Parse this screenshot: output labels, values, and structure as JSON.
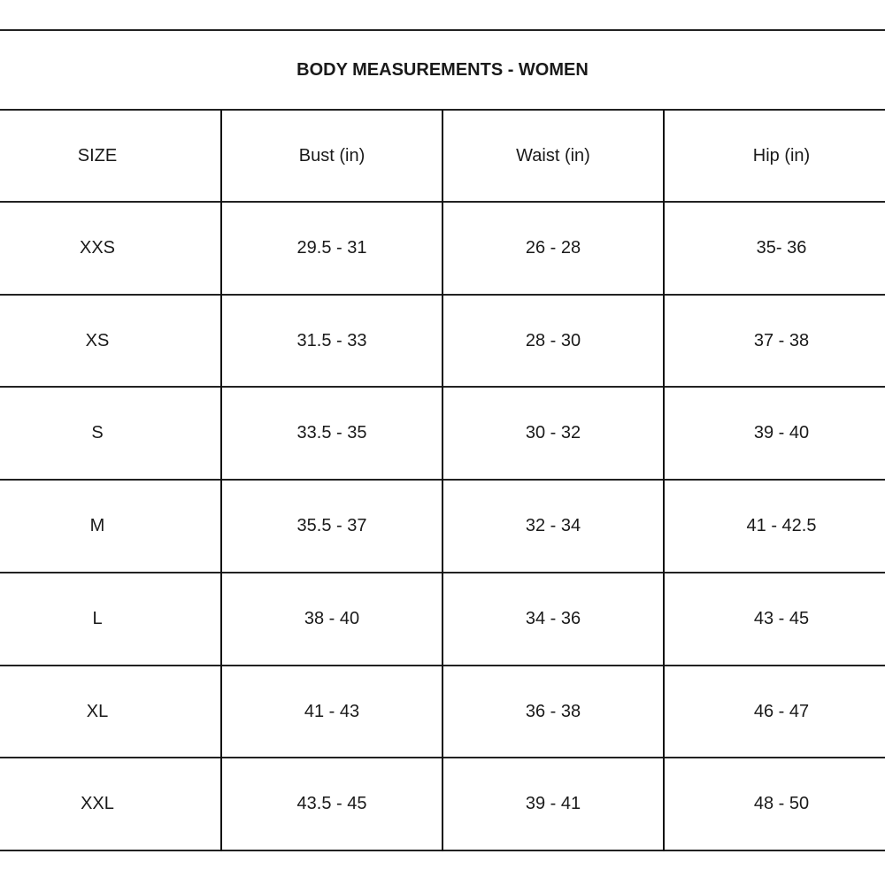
{
  "title": "BODY MEASUREMENTS - WOMEN",
  "headers": [
    "SIZE",
    "Bust (in)",
    "Waist (in)",
    "Hip (in)"
  ],
  "rows": [
    [
      "XXS",
      "29.5 - 31",
      "26 - 28",
      "35- 36"
    ],
    [
      "XS",
      "31.5 - 33",
      "28 - 30",
      "37 - 38"
    ],
    [
      "S",
      "33.5 - 35",
      "30 - 32",
      "39 - 40"
    ],
    [
      "M",
      "35.5 - 37",
      "32 - 34",
      "41 - 42.5"
    ],
    [
      "L",
      "38 - 40",
      "34 - 36",
      "43 - 45"
    ],
    [
      "XL",
      "41 - 43",
      "36 - 38",
      "46 - 47"
    ],
    [
      "XXL",
      "43.5 - 45",
      "39 - 41",
      "48 - 50"
    ]
  ]
}
